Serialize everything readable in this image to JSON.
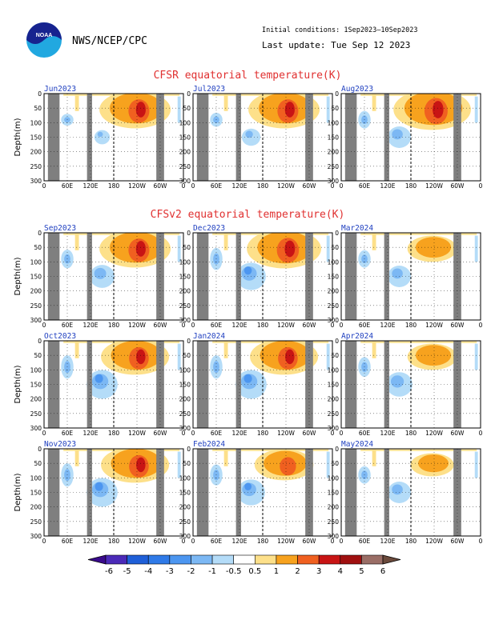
{
  "header": {
    "org": "NWS/NCEP/CPC",
    "logo_text": "NOAA",
    "initial_conditions": "Initial conditions: 1Sep2023–10Sep2023",
    "last_update": "Last update: Tue Sep 12 2023"
  },
  "sections": [
    {
      "title": "CFSR equatorial temperature(K)"
    },
    {
      "title": "CFSv2 equatorial temperature(K)"
    }
  ],
  "axis": {
    "ylabel": "Depth(m)",
    "yticks": [
      "0",
      "50",
      "100",
      "150",
      "200",
      "250",
      "300"
    ],
    "xticks": [
      "0",
      "60E",
      "120E",
      "180",
      "120W",
      "60W",
      "0"
    ]
  },
  "colors": {
    "title": "#e03030",
    "panel_title": "#2040c0",
    "land": "#7f7f7f"
  },
  "chart_data": {
    "type": "heatmap",
    "panels": [
      {
        "month": "Jun2023",
        "section": "CFSR",
        "warm": 0.9,
        "cold": 0.25
      },
      {
        "month": "Jul2023",
        "section": "CFSR",
        "warm": 0.9,
        "cold": 0.35
      },
      {
        "month": "Aug2023",
        "section": "CFSR",
        "warm": 1.0,
        "cold": 0.5
      },
      {
        "month": "Sep2023",
        "section": "CFSv2",
        "warm": 0.9,
        "cold": 0.55
      },
      {
        "month": "Dec2023",
        "section": "CFSv2",
        "warm": 0.95,
        "cold": 0.7
      },
      {
        "month": "Mar2024",
        "section": "CFSv2",
        "warm": 0.55,
        "cold": 0.5
      },
      {
        "month": "Oct2023",
        "section": "CFSv2",
        "warm": 0.85,
        "cold": 0.75
      },
      {
        "month": "Jan2024",
        "section": "CFSv2",
        "warm": 0.85,
        "cold": 0.75
      },
      {
        "month": "Apr2024",
        "section": "CFSv2",
        "warm": 0.55,
        "cold": 0.6
      },
      {
        "month": "Nov2023",
        "section": "CFSv2",
        "warm": 0.85,
        "cold": 0.75
      },
      {
        "month": "Feb2024",
        "section": "CFSv2",
        "warm": 0.7,
        "cold": 0.65
      },
      {
        "month": "May2024",
        "section": "CFSv2",
        "warm": 0.45,
        "cold": 0.5
      }
    ],
    "x_axis": "longitude",
    "y_axis": "depth (m)",
    "ylim": [
      0,
      300
    ],
    "colorbar": {
      "ticks": [
        "-6",
        "-5",
        "-4",
        "-3",
        "-2",
        "-1",
        "-0.5",
        "0.5",
        "1",
        "2",
        "3",
        "4",
        "5",
        "6"
      ],
      "colors": [
        "#4b2ab8",
        "#1f5fd8",
        "#2f7ae8",
        "#4c96f0",
        "#7cb8f4",
        "#b4dcf8",
        "#ffffff",
        "#fde08a",
        "#f7a21e",
        "#f06020",
        "#c81414",
        "#a01010",
        "#9a6e66"
      ]
    }
  }
}
